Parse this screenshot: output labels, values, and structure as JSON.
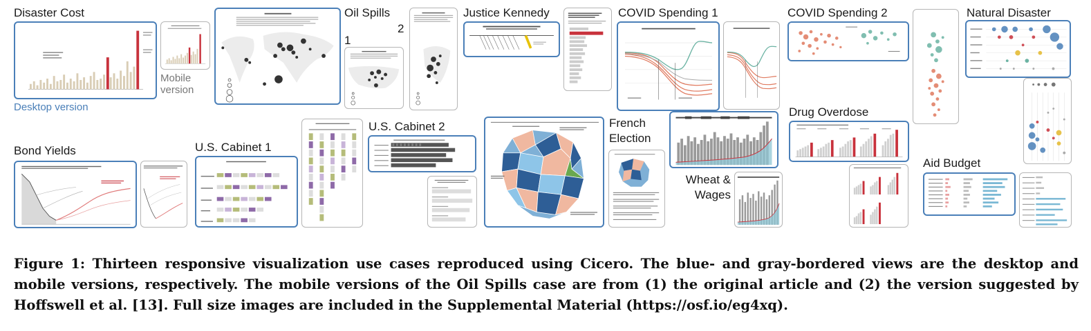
{
  "figure": {
    "labels": {
      "disaster_cost": "Disaster Cost",
      "desktop_version": "Desktop version",
      "mobile_version": "Mobile version",
      "oil_spills": "Oil Spills",
      "oil_1": "1",
      "oil_2": "2",
      "justice_kennedy": "Justice Kennedy",
      "covid1": "COVID Spending 1",
      "covid2": "COVID Spending 2",
      "natural_disaster": "Natural Disaster",
      "bond_yields": "Bond Yields",
      "cabinet1": "U.S. Cabinet 1",
      "cabinet2": "U.S. Cabinet 2",
      "french_election": "French Election",
      "wheat_wages": "Wheat & Wages",
      "drug_overdose": "Drug Overdose",
      "aid_budget": "Aid Budget"
    },
    "caption": "Figure 1: Thirteen responsive visualization use cases reproduced using Cicero. The blue- and gray-bordered views are the desktop and mobile versions, respectively. The mobile versions of the Oil Spills case are from (1) the original article and (2) the version suggested by Hoffswell et al. [13]. Full size images are included in the Supplemental Material (https://osf.io/eg4xq)."
  },
  "colors": {
    "desktop_border": "#4a7fb8",
    "mobile_border": "#b5b5b5",
    "bar_beige": "#d9cdb5",
    "highlight_red": "#c8323c",
    "teal": "#6bb3a3",
    "coral": "#e07a5f",
    "purple": "#8e6aa8",
    "olive": "#b5bc7a"
  }
}
